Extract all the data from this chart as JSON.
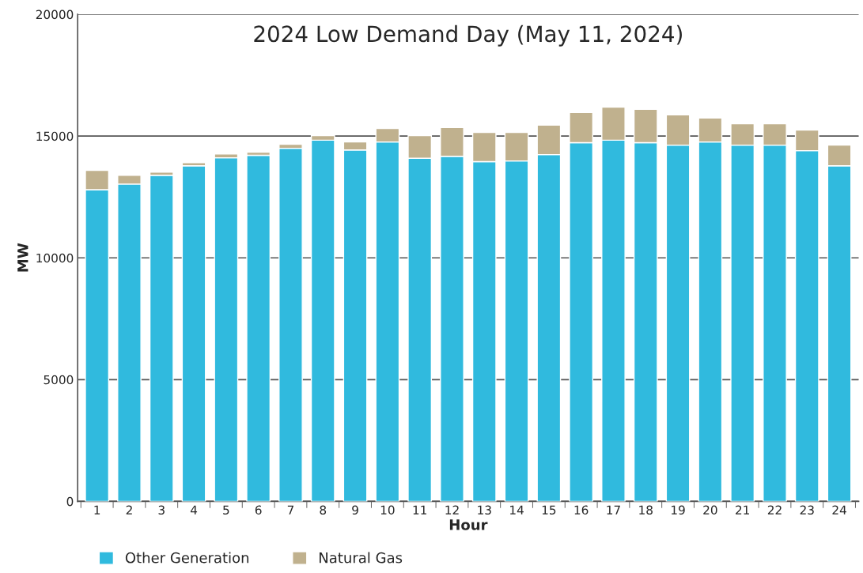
{
  "chart_data": {
    "type": "bar",
    "title": "2024 Low Demand Day (May 11, 2024)",
    "xlabel": "Hour",
    "ylabel": "MW",
    "categories": [
      "1",
      "2",
      "3",
      "4",
      "5",
      "6",
      "7",
      "8",
      "9",
      "10",
      "11",
      "12",
      "13",
      "14",
      "15",
      "16",
      "17",
      "18",
      "19",
      "20",
      "21",
      "22",
      "23",
      "24"
    ],
    "stacked": true,
    "series": [
      {
        "name": "Other Generation",
        "color": "#30bade",
        "values": [
          12800,
          13030,
          13390,
          13780,
          14110,
          14210,
          14500,
          14830,
          14430,
          14760,
          14090,
          14170,
          13950,
          13980,
          14240,
          14730,
          14830,
          14730,
          14630,
          14760,
          14630,
          14630,
          14400,
          13780
        ]
      },
      {
        "name": "Natural Gas",
        "color": "#c0b18e",
        "values": [
          790,
          360,
          130,
          130,
          160,
          130,
          160,
          190,
          330,
          550,
          930,
          1180,
          1200,
          1170,
          1210,
          1240,
          1360,
          1370,
          1240,
          980,
          880,
          880,
          850,
          850
        ]
      }
    ],
    "ylim": [
      0,
      20000
    ],
    "yticks": [
      0,
      5000,
      10000,
      15000,
      20000
    ],
    "grid": "y",
    "legend": "bottom left"
  }
}
